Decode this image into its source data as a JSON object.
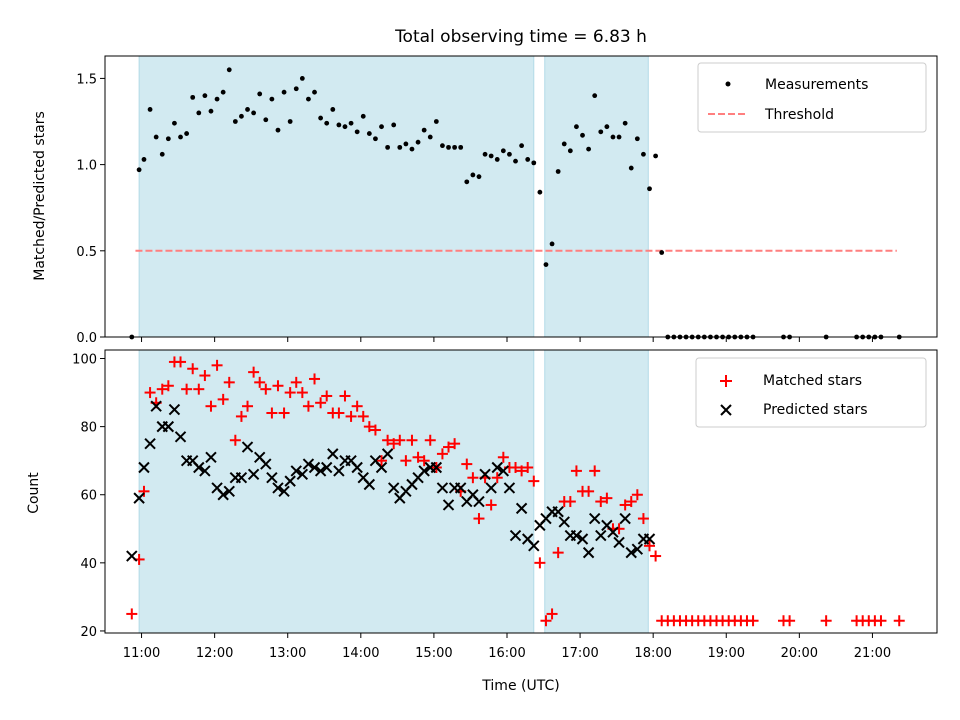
{
  "title": "Total observing time = 6.83 h",
  "xlabel": "Time (UTC)",
  "x_ticks": [
    "11:00",
    "12:00",
    "13:00",
    "14:00",
    "15:00",
    "16:00",
    "17:00",
    "18:00",
    "19:00",
    "20:00",
    "21:00"
  ],
  "chart_data": [
    {
      "type": "scatter",
      "ylabel": "Matched/Predicted stars",
      "xlim": [
        "10:30",
        "21:53"
      ],
      "ylim": [
        0,
        1.63
      ],
      "y_ticks": [
        "0.0",
        "0.5",
        "1.0",
        "1.5"
      ],
      "legend_position": "top-right",
      "observing_windows": [
        [
          "10:58",
          "16:22"
        ],
        [
          "16:31",
          "17:56"
        ]
      ],
      "shade_color": "#add8e6",
      "threshold": {
        "name": "Threshold",
        "value": 0.5,
        "x_range": [
          "10:55",
          "21:20"
        ],
        "color": "#ff7f7f"
      },
      "series": [
        {
          "name": "Measurements",
          "color": "#000000",
          "x": [
            "10:52",
            "10:58",
            "11:02",
            "11:07",
            "11:12",
            "11:17",
            "11:22",
            "11:27",
            "11:32",
            "11:37",
            "11:42",
            "11:47",
            "11:52",
            "11:57",
            "12:02",
            "12:07",
            "12:12",
            "12:17",
            "12:22",
            "12:27",
            "12:32",
            "12:37",
            "12:42",
            "12:47",
            "12:52",
            "12:57",
            "13:02",
            "13:07",
            "13:12",
            "13:17",
            "13:22",
            "13:27",
            "13:32",
            "13:37",
            "13:42",
            "13:47",
            "13:52",
            "13:57",
            "14:02",
            "14:07",
            "14:12",
            "14:17",
            "14:22",
            "14:27",
            "14:32",
            "14:37",
            "14:42",
            "14:47",
            "14:52",
            "14:57",
            "15:02",
            "15:07",
            "15:12",
            "15:17",
            "15:22",
            "15:27",
            "15:32",
            "15:37",
            "15:42",
            "15:47",
            "15:52",
            "15:57",
            "16:02",
            "16:07",
            "16:12",
            "16:17",
            "16:22",
            "16:27",
            "16:32",
            "16:37",
            "16:42",
            "16:47",
            "16:52",
            "16:57",
            "17:02",
            "17:07",
            "17:12",
            "17:17",
            "17:22",
            "17:27",
            "17:32",
            "17:37",
            "17:42",
            "17:47",
            "17:52",
            "17:57",
            "18:02",
            "18:07",
            "18:12",
            "18:17",
            "18:22",
            "18:27",
            "18:32",
            "18:37",
            "18:42",
            "18:47",
            "18:52",
            "18:57",
            "19:02",
            "19:07",
            "19:12",
            "19:17",
            "19:22",
            "19:47",
            "19:52",
            "20:22",
            "20:47",
            "20:52",
            "20:57",
            "21:02",
            "21:07",
            "21:22"
          ],
          "values": [
            0.0,
            0.97,
            1.03,
            1.32,
            1.16,
            1.06,
            1.15,
            1.24,
            1.16,
            1.18,
            1.39,
            1.3,
            1.4,
            1.31,
            1.38,
            1.42,
            1.55,
            1.25,
            1.28,
            1.32,
            1.3,
            1.41,
            1.26,
            1.38,
            1.2,
            1.42,
            1.25,
            1.44,
            1.5,
            1.38,
            1.42,
            1.27,
            1.24,
            1.32,
            1.23,
            1.22,
            1.24,
            1.19,
            1.28,
            1.18,
            1.15,
            1.22,
            1.1,
            1.23,
            1.1,
            1.12,
            1.09,
            1.13,
            1.2,
            1.16,
            1.25,
            1.11,
            1.1,
            1.1,
            1.1,
            0.9,
            0.94,
            0.93,
            1.06,
            1.05,
            1.03,
            1.08,
            1.06,
            1.02,
            1.11,
            1.03,
            1.01,
            0.84,
            0.42,
            0.54,
            0.96,
            1.12,
            1.08,
            1.22,
            1.17,
            1.09,
            1.4,
            1.19,
            1.22,
            1.16,
            1.16,
            1.24,
            0.98,
            1.15,
            1.06,
            0.86,
            1.05,
            0.49,
            0.0,
            0.0,
            0.0,
            0.0,
            0.0,
            0.0,
            0.0,
            0.0,
            0.0,
            0.0,
            0.0,
            0.0,
            0.0,
            0.0,
            0.0,
            0.0,
            0.0,
            0.0,
            0.0,
            0.0,
            0.0,
            0.0,
            0.0,
            0.0
          ]
        }
      ]
    },
    {
      "type": "scatter",
      "ylabel": "Count",
      "xlabel": "Time (UTC)",
      "xlim": [
        "10:30",
        "21:53"
      ],
      "ylim": [
        19.4,
        102.5
      ],
      "y_ticks": [
        "20",
        "40",
        "60",
        "80",
        "100"
      ],
      "legend_position": "top-right",
      "observing_windows": [
        [
          "10:58",
          "16:22"
        ],
        [
          "16:31",
          "17:56"
        ]
      ],
      "shade_color": "#add8e6",
      "series": [
        {
          "name": "Matched stars",
          "color": "#ff0000",
          "marker": "+",
          "x": [
            "10:52",
            "10:58",
            "11:02",
            "11:07",
            "11:12",
            "11:17",
            "11:22",
            "11:27",
            "11:32",
            "11:37",
            "11:42",
            "11:47",
            "11:52",
            "11:57",
            "12:02",
            "12:07",
            "12:12",
            "12:17",
            "12:22",
            "12:27",
            "12:32",
            "12:37",
            "12:42",
            "12:47",
            "12:52",
            "12:57",
            "13:02",
            "13:07",
            "13:12",
            "13:17",
            "13:22",
            "13:27",
            "13:32",
            "13:37",
            "13:42",
            "13:47",
            "13:52",
            "13:57",
            "14:02",
            "14:07",
            "14:12",
            "14:17",
            "14:22",
            "14:27",
            "14:32",
            "14:37",
            "14:42",
            "14:47",
            "14:52",
            "14:57",
            "15:02",
            "15:07",
            "15:12",
            "15:17",
            "15:22",
            "15:27",
            "15:32",
            "15:37",
            "15:42",
            "15:47",
            "15:52",
            "15:57",
            "16:02",
            "16:07",
            "16:12",
            "16:17",
            "16:22",
            "16:27",
            "16:32",
            "16:37",
            "16:42",
            "16:47",
            "16:52",
            "16:57",
            "17:02",
            "17:07",
            "17:12",
            "17:17",
            "17:22",
            "17:27",
            "17:32",
            "17:37",
            "17:42",
            "17:47",
            "17:52",
            "17:57",
            "18:02",
            "18:07",
            "18:12",
            "18:17",
            "18:22",
            "18:27",
            "18:32",
            "18:37",
            "18:42",
            "18:47",
            "18:52",
            "18:57",
            "19:02",
            "19:07",
            "19:12",
            "19:17",
            "19:22",
            "19:47",
            "19:52",
            "20:22",
            "20:47",
            "20:52",
            "20:57",
            "21:02",
            "21:07",
            "21:22"
          ],
          "values": [
            25,
            41,
            61,
            90,
            87,
            91,
            92,
            99,
            99,
            91,
            97,
            91,
            95,
            86,
            98,
            88,
            93,
            76,
            83,
            86,
            96,
            93,
            91,
            84,
            92,
            84,
            90,
            93,
            90,
            86,
            94,
            87,
            89,
            84,
            84,
            89,
            83,
            86,
            83,
            80,
            79,
            70,
            76,
            75,
            76,
            70,
            76,
            71,
            70,
            76,
            68,
            72,
            74,
            75,
            61,
            69,
            65,
            53,
            65,
            57,
            65,
            71,
            68,
            68,
            67,
            68,
            64,
            40,
            23,
            25,
            43,
            58,
            58,
            67,
            61,
            61,
            67,
            58,
            59,
            50,
            50,
            57,
            58,
            60,
            53,
            45,
            42,
            23,
            23,
            23,
            23,
            23,
            23,
            23,
            23,
            23,
            23,
            23,
            23,
            23,
            23,
            23,
            23,
            23,
            23,
            23,
            23,
            23,
            23,
            23,
            23,
            23
          ]
        },
        {
          "name": "Predicted stars",
          "color": "#000000",
          "marker": "x",
          "x": [
            "10:52",
            "10:58",
            "11:02",
            "11:07",
            "11:12",
            "11:17",
            "11:22",
            "11:27",
            "11:32",
            "11:37",
            "11:42",
            "11:47",
            "11:52",
            "11:57",
            "12:02",
            "12:07",
            "12:12",
            "12:17",
            "12:22",
            "12:27",
            "12:32",
            "12:37",
            "12:42",
            "12:47",
            "12:52",
            "12:57",
            "13:02",
            "13:07",
            "13:12",
            "13:17",
            "13:22",
            "13:27",
            "13:32",
            "13:37",
            "13:42",
            "13:47",
            "13:52",
            "13:57",
            "14:02",
            "14:07",
            "14:12",
            "14:17",
            "14:22",
            "14:27",
            "14:32",
            "14:37",
            "14:42",
            "14:47",
            "14:52",
            "14:57",
            "15:02",
            "15:07",
            "15:12",
            "15:17",
            "15:22",
            "15:27",
            "15:32",
            "15:37",
            "15:42",
            "15:47",
            "15:52",
            "15:57",
            "16:02",
            "16:07",
            "16:12",
            "16:17",
            "16:22",
            "16:27",
            "16:32",
            "16:37",
            "16:42",
            "16:47",
            "16:52",
            "16:57",
            "17:02",
            "17:07",
            "17:12",
            "17:17",
            "17:22",
            "17:27",
            "17:32",
            "17:37",
            "17:42",
            "17:47",
            "17:52",
            "17:57"
          ],
          "values": [
            42,
            59,
            68,
            75,
            86,
            80,
            80,
            85,
            77,
            70,
            70,
            68,
            67,
            71,
            62,
            60,
            61,
            65,
            65,
            74,
            66,
            71,
            69,
            65,
            62,
            61,
            64,
            67,
            66,
            69,
            68,
            67,
            68,
            72,
            67,
            70,
            70,
            68,
            65,
            63,
            70,
            68,
            72,
            62,
            59,
            61,
            63,
            65,
            67,
            68,
            68,
            62,
            57,
            62,
            62,
            58,
            60,
            58,
            66,
            62,
            68,
            67,
            62,
            48,
            56,
            47,
            45,
            51,
            53,
            55,
            55,
            52,
            48,
            48,
            47,
            43,
            53,
            48,
            51,
            49,
            46,
            53,
            43,
            44,
            47,
            47
          ]
        }
      ]
    }
  ]
}
